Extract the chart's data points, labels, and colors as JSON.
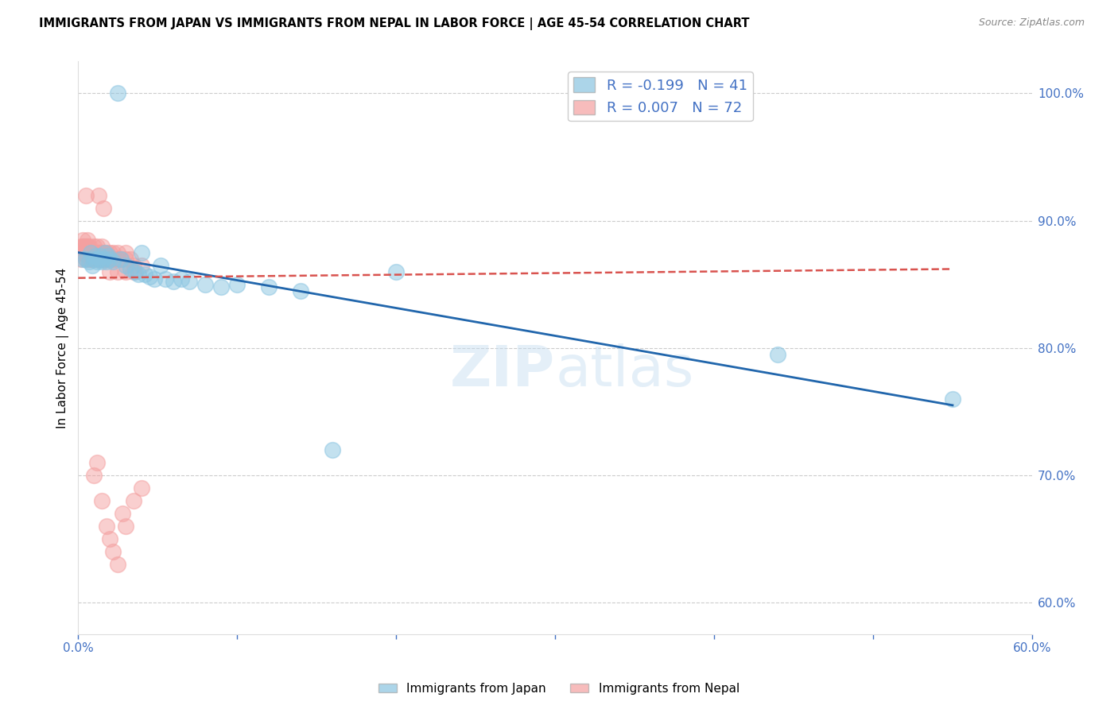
{
  "title": "IMMIGRANTS FROM JAPAN VS IMMIGRANTS FROM NEPAL IN LABOR FORCE | AGE 45-54 CORRELATION CHART",
  "source": "Source: ZipAtlas.com",
  "ylabel": "In Labor Force | Age 45-54",
  "xlim": [
    0.0,
    0.6
  ],
  "ylim": [
    0.575,
    1.025
  ],
  "yticks": [
    0.6,
    0.7,
    0.8,
    0.9,
    1.0
  ],
  "yticklabels": [
    "60.0%",
    "70.0%",
    "80.0%",
    "90.0%",
    "100.0%"
  ],
  "legend_japan": "R = -0.199   N = 41",
  "legend_nepal": "R = 0.007   N = 72",
  "color_japan": "#89c4e1",
  "color_nepal": "#f4a0a0",
  "trendline_japan_color": "#2166ac",
  "trendline_nepal_color": "#d9534f",
  "watermark": "ZIPatlas",
  "japan_x": [
    0.003,
    0.005,
    0.007,
    0.008,
    0.009,
    0.01,
    0.011,
    0.012,
    0.013,
    0.014,
    0.015,
    0.016,
    0.017,
    0.018,
    0.019,
    0.02,
    0.022,
    0.025,
    0.027,
    0.03,
    0.033,
    0.036,
    0.038,
    0.04,
    0.042,
    0.045,
    0.048,
    0.052,
    0.055,
    0.06,
    0.065,
    0.07,
    0.08,
    0.09,
    0.1,
    0.12,
    0.14,
    0.16,
    0.2,
    0.44,
    0.55
  ],
  "japan_y": [
    0.87,
    0.87,
    0.868,
    0.875,
    0.865,
    0.87,
    0.872,
    0.868,
    0.87,
    0.872,
    0.868,
    0.87,
    0.875,
    0.868,
    0.872,
    0.87,
    0.868,
    1.0,
    0.87,
    0.865,
    0.862,
    0.86,
    0.858,
    0.875,
    0.858,
    0.856,
    0.854,
    0.865,
    0.854,
    0.852,
    0.854,
    0.852,
    0.85,
    0.848,
    0.85,
    0.848,
    0.845,
    0.72,
    0.86,
    0.795,
    0.76
  ],
  "nepal_x": [
    0.002,
    0.002,
    0.002,
    0.003,
    0.003,
    0.003,
    0.004,
    0.004,
    0.005,
    0.005,
    0.005,
    0.005,
    0.006,
    0.006,
    0.006,
    0.007,
    0.007,
    0.007,
    0.008,
    0.008,
    0.009,
    0.009,
    0.01,
    0.01,
    0.01,
    0.011,
    0.011,
    0.012,
    0.012,
    0.012,
    0.013,
    0.013,
    0.014,
    0.014,
    0.015,
    0.015,
    0.015,
    0.016,
    0.016,
    0.017,
    0.018,
    0.018,
    0.019,
    0.02,
    0.02,
    0.022,
    0.022,
    0.025,
    0.025,
    0.027,
    0.03,
    0.03,
    0.033,
    0.035,
    0.04,
    0.01,
    0.012,
    0.015,
    0.018,
    0.02,
    0.022,
    0.025,
    0.028,
    0.03,
    0.035,
    0.04,
    0.013,
    0.016,
    0.02,
    0.025,
    0.03,
    0.035
  ],
  "nepal_y": [
    0.87,
    0.875,
    0.88,
    0.875,
    0.88,
    0.885,
    0.875,
    0.88,
    0.87,
    0.875,
    0.88,
    0.92,
    0.875,
    0.88,
    0.885,
    0.87,
    0.875,
    0.88,
    0.87,
    0.875,
    0.87,
    0.875,
    0.87,
    0.875,
    0.88,
    0.87,
    0.875,
    0.87,
    0.875,
    0.88,
    0.87,
    0.875,
    0.87,
    0.875,
    0.87,
    0.875,
    0.88,
    0.87,
    0.875,
    0.87,
    0.87,
    0.875,
    0.87,
    0.87,
    0.875,
    0.87,
    0.875,
    0.87,
    0.875,
    0.87,
    0.87,
    0.875,
    0.87,
    0.865,
    0.865,
    0.7,
    0.71,
    0.68,
    0.66,
    0.65,
    0.64,
    0.63,
    0.67,
    0.66,
    0.68,
    0.69,
    0.92,
    0.91,
    0.86,
    0.86,
    0.86,
    0.86
  ]
}
